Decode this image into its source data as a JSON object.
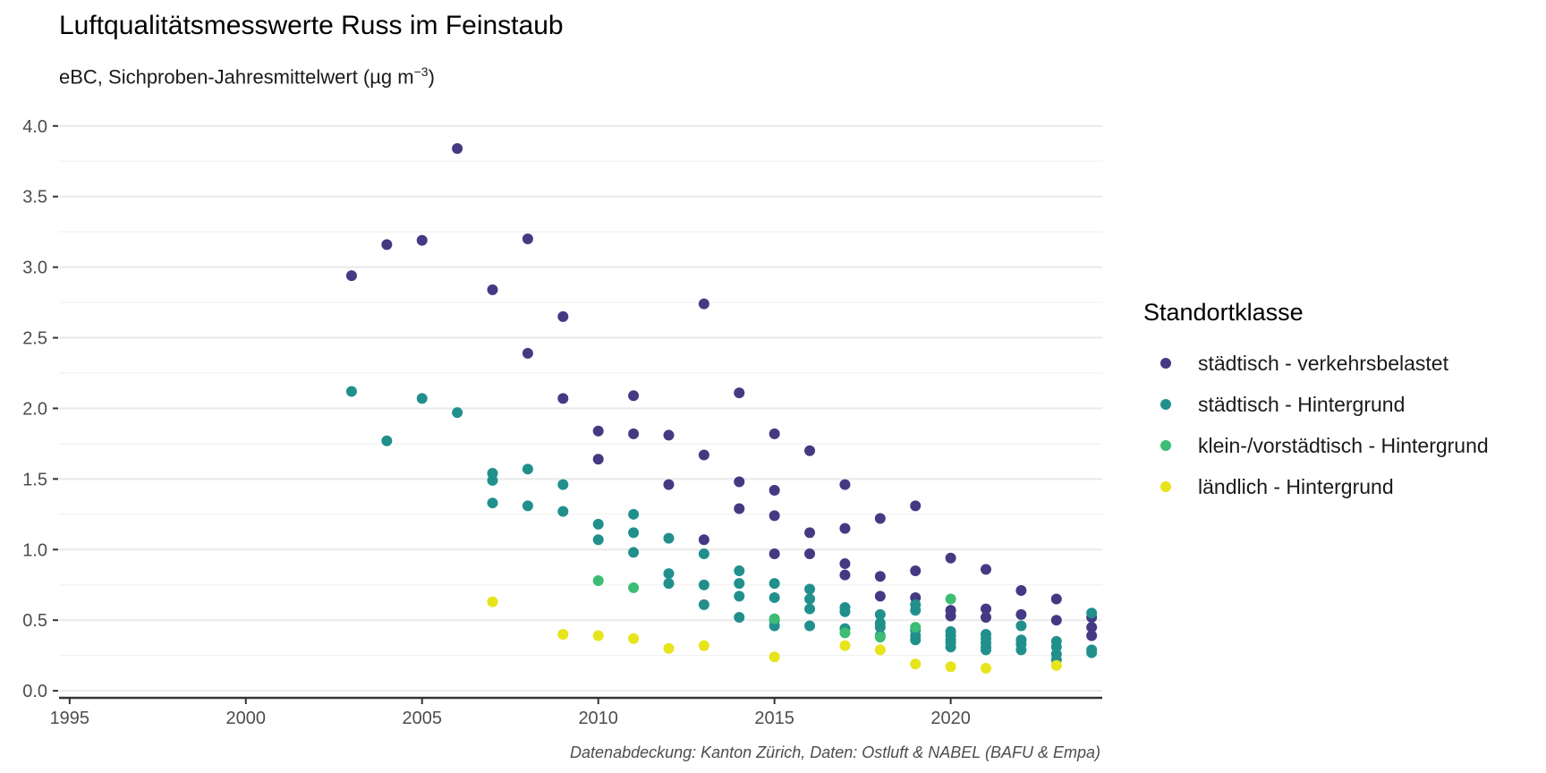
{
  "chart_data": {
    "type": "scatter",
    "title": "Luftqualitätsmesswerte Russ im Feinstaub",
    "subtitle_main": "eBC, Sichproben-Jahresmittelwert (µg m",
    "subtitle_sup": "−3",
    "subtitle_end": ")",
    "caption": "Datenabdeckung: Kanton Zürich, Daten: Ostluft & NABEL (BAFU & Empa)",
    "xlim": [
      1994.7,
      2024.3
    ],
    "ylim": [
      -0.05,
      4.1
    ],
    "x_ticks": [
      1995,
      2000,
      2005,
      2010,
      2015,
      2020
    ],
    "y_ticks": [
      "0.0",
      "0.5",
      "1.0",
      "1.5",
      "2.0",
      "2.5",
      "3.0",
      "3.5",
      "4.0"
    ],
    "grid": true,
    "legend": {
      "title": "Standortklasse",
      "position": "right"
    },
    "series": [
      {
        "name": "städtisch - verkehrsbelastet",
        "color": "#443a83",
        "points": [
          [
            2003,
            2.94
          ],
          [
            2004,
            3.16
          ],
          [
            2005,
            3.19
          ],
          [
            2006,
            3.84
          ],
          [
            2007,
            2.84
          ],
          [
            2008,
            3.2
          ],
          [
            2008,
            2.39
          ],
          [
            2009,
            2.65
          ],
          [
            2009,
            2.07
          ],
          [
            2010,
            1.84
          ],
          [
            2010,
            1.64
          ],
          [
            2011,
            2.09
          ],
          [
            2011,
            1.82
          ],
          [
            2012,
            1.81
          ],
          [
            2012,
            1.46
          ],
          [
            2013,
            2.74
          ],
          [
            2013,
            1.67
          ],
          [
            2013,
            1.07
          ],
          [
            2014,
            2.11
          ],
          [
            2014,
            1.48
          ],
          [
            2014,
            1.29
          ],
          [
            2015,
            1.82
          ],
          [
            2015,
            1.42
          ],
          [
            2015,
            1.24
          ],
          [
            2015,
            0.97
          ],
          [
            2016,
            1.7
          ],
          [
            2016,
            1.12
          ],
          [
            2016,
            0.97
          ],
          [
            2017,
            1.46
          ],
          [
            2017,
            1.15
          ],
          [
            2017,
            0.9
          ],
          [
            2017,
            0.82
          ],
          [
            2018,
            1.22
          ],
          [
            2018,
            0.81
          ],
          [
            2018,
            0.67
          ],
          [
            2019,
            1.31
          ],
          [
            2019,
            0.85
          ],
          [
            2019,
            0.66
          ],
          [
            2020,
            0.94
          ],
          [
            2020,
            0.57
          ],
          [
            2020,
            0.53
          ],
          [
            2021,
            0.86
          ],
          [
            2021,
            0.58
          ],
          [
            2021,
            0.52
          ],
          [
            2022,
            0.71
          ],
          [
            2022,
            0.54
          ],
          [
            2023,
            0.65
          ],
          [
            2023,
            0.5
          ],
          [
            2024,
            0.52
          ],
          [
            2024,
            0.45
          ],
          [
            2024,
            0.39
          ]
        ]
      },
      {
        "name": "städtisch - Hintergrund",
        "color": "#21908d",
        "points": [
          [
            2003,
            2.12
          ],
          [
            2004,
            1.77
          ],
          [
            2005,
            2.07
          ],
          [
            2006,
            1.97
          ],
          [
            2007,
            1.54
          ],
          [
            2007,
            1.49
          ],
          [
            2007,
            1.33
          ],
          [
            2008,
            1.57
          ],
          [
            2008,
            1.31
          ],
          [
            2009,
            1.46
          ],
          [
            2009,
            1.27
          ],
          [
            2010,
            1.18
          ],
          [
            2010,
            1.07
          ],
          [
            2011,
            1.25
          ],
          [
            2011,
            1.12
          ],
          [
            2011,
            0.98
          ],
          [
            2012,
            1.08
          ],
          [
            2012,
            0.83
          ],
          [
            2012,
            0.76
          ],
          [
            2013,
            0.97
          ],
          [
            2013,
            0.75
          ],
          [
            2013,
            0.61
          ],
          [
            2014,
            0.85
          ],
          [
            2014,
            0.76
          ],
          [
            2014,
            0.67
          ],
          [
            2014,
            0.52
          ],
          [
            2015,
            0.76
          ],
          [
            2015,
            0.66
          ],
          [
            2015,
            0.5
          ],
          [
            2015,
            0.46
          ],
          [
            2016,
            0.72
          ],
          [
            2016,
            0.65
          ],
          [
            2016,
            0.58
          ],
          [
            2016,
            0.46
          ],
          [
            2017,
            0.59
          ],
          [
            2017,
            0.56
          ],
          [
            2017,
            0.44
          ],
          [
            2018,
            0.54
          ],
          [
            2018,
            0.48
          ],
          [
            2018,
            0.45
          ],
          [
            2018,
            0.39
          ],
          [
            2019,
            0.61
          ],
          [
            2019,
            0.57
          ],
          [
            2019,
            0.43
          ],
          [
            2019,
            0.39
          ],
          [
            2019,
            0.36
          ],
          [
            2020,
            0.42
          ],
          [
            2020,
            0.39
          ],
          [
            2020,
            0.36
          ],
          [
            2020,
            0.34
          ],
          [
            2020,
            0.31
          ],
          [
            2021,
            0.4
          ],
          [
            2021,
            0.37
          ],
          [
            2021,
            0.34
          ],
          [
            2021,
            0.31
          ],
          [
            2021,
            0.29
          ],
          [
            2022,
            0.46
          ],
          [
            2022,
            0.36
          ],
          [
            2022,
            0.33
          ],
          [
            2022,
            0.29
          ],
          [
            2023,
            0.35
          ],
          [
            2023,
            0.31
          ],
          [
            2023,
            0.26
          ],
          [
            2023,
            0.22
          ],
          [
            2024,
            0.55
          ],
          [
            2024,
            0.29
          ],
          [
            2024,
            0.27
          ]
        ]
      },
      {
        "name": "klein-/vorstädtisch - Hintergrund",
        "color": "#3dbc74",
        "points": [
          [
            2010,
            0.78
          ],
          [
            2011,
            0.73
          ],
          [
            2015,
            0.51
          ],
          [
            2017,
            0.41
          ],
          [
            2018,
            0.38
          ],
          [
            2019,
            0.45
          ],
          [
            2020,
            0.65
          ]
        ]
      },
      {
        "name": "ländlich - Hintergrund",
        "color": "#e7e419",
        "points": [
          [
            2007,
            0.63
          ],
          [
            2009,
            0.4
          ],
          [
            2010,
            0.39
          ],
          [
            2011,
            0.37
          ],
          [
            2012,
            0.3
          ],
          [
            2013,
            0.32
          ],
          [
            2015,
            0.24
          ],
          [
            2017,
            0.32
          ],
          [
            2018,
            0.29
          ],
          [
            2019,
            0.19
          ],
          [
            2020,
            0.17
          ],
          [
            2021,
            0.16
          ],
          [
            2023,
            0.18
          ]
        ]
      }
    ]
  }
}
